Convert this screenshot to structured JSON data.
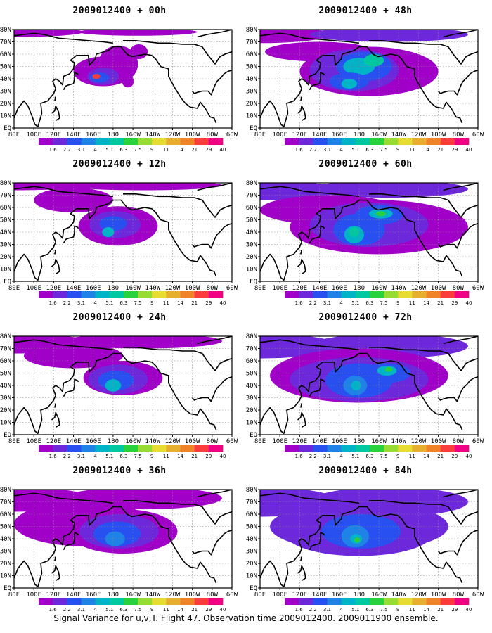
{
  "figure_caption": "Signal Variance for u,v,T. Flight 47. Observation time 2009012400. 2009011900 ensemble.",
  "map": {
    "lat_labels": [
      "EQ",
      "10N",
      "20N",
      "30N",
      "40N",
      "50N",
      "60N",
      "70N",
      "80N"
    ],
    "lon_labels": [
      "80E",
      "100E",
      "120E",
      "140E",
      "160E",
      "180",
      "160W",
      "140W",
      "120W",
      "100W",
      "80W",
      "60W"
    ]
  },
  "colorbar": {
    "labels": [
      "1.6",
      "2.2",
      "3.1",
      "4",
      "5.1",
      "6.3",
      "7.5",
      "9",
      "11",
      "14",
      "21",
      "29",
      "40"
    ],
    "colors": [
      "#a000c8",
      "#6e28dc",
      "#2850f0",
      "#1e82e6",
      "#00b4c8",
      "#00c8a0",
      "#28d23c",
      "#96dc32",
      "#e6dc32",
      "#e6af2d",
      "#f08228",
      "#fa3c3c",
      "#f00082"
    ]
  },
  "panels": [
    {
      "title": "2009012400 + 00h",
      "lead_hours": 0
    },
    {
      "title": "2009012400 + 48h",
      "lead_hours": 48
    },
    {
      "title": "2009012400 + 12h",
      "lead_hours": 12
    },
    {
      "title": "2009012400 + 60h",
      "lead_hours": 60
    },
    {
      "title": "2009012400 + 24h",
      "lead_hours": 24
    },
    {
      "title": "2009012400 + 72h",
      "lead_hours": 72
    },
    {
      "title": "2009012400 + 36h",
      "lead_hours": 36
    },
    {
      "title": "2009012400 + 84h",
      "lead_hours": 84
    }
  ]
}
